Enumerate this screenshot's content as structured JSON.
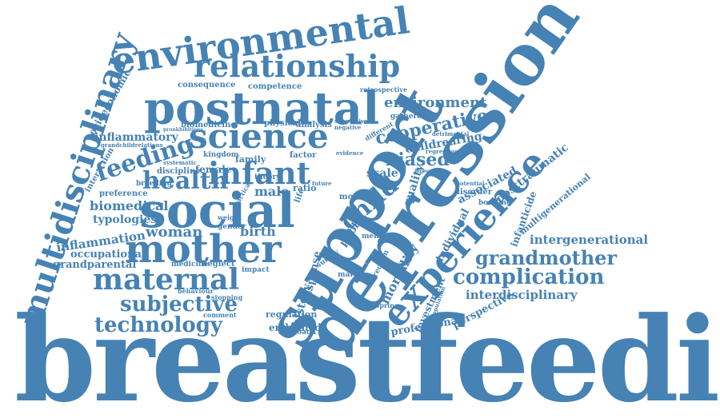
{
  "color": "#4682b4",
  "words": [
    "breastfeeding",
    "depression",
    "support",
    "multidisciplinary",
    "environmental",
    "postnatal",
    "relationship",
    "social",
    "mother",
    "science",
    "maternal",
    "infant",
    "experience",
    "health",
    "feeding",
    "complication",
    "grandmother",
    "child",
    "technology",
    "subjective",
    "environment",
    "intergenerational",
    "cooperative",
    "interdisciplinary",
    "biased",
    "biomedical",
    "woman",
    "inflammation",
    "inflammatory",
    "occupational",
    "grandparental",
    "socioeconomic",
    "typologies",
    "childrearing",
    "posttraumatic",
    "associated",
    "individual",
    "professional",
    "perspective",
    "mortality",
    "investment",
    "history",
    "quality",
    "scale",
    "public",
    "response",
    "embodied",
    "infanticide",
    "multigenerational",
    "consequence",
    "competence",
    "retrospective",
    "biomedicine",
    "physical",
    "analysis",
    "gatherer",
    "discipline",
    "female",
    "preference",
    "interaction",
    "kingdom",
    "family",
    "breeding",
    "male",
    "birth",
    "neglect",
    "medicine",
    "comment",
    "behaviour",
    "stopping",
    "approach",
    "regulation",
    "theory",
    "ratio",
    "factor",
    "month",
    "disorder",
    "bonding",
    "direction",
    "offspring",
    "mental",
    "survey",
    "marker",
    "impact",
    "gender",
    "population",
    "potential",
    "evidence",
    "negative",
    "supportive",
    "different",
    "detrimental",
    "regression",
    "important",
    "weight",
    "life",
    "future",
    "practical",
    "systematic",
    "pronkhibitions",
    "grandchildrelations"
  ]
}
